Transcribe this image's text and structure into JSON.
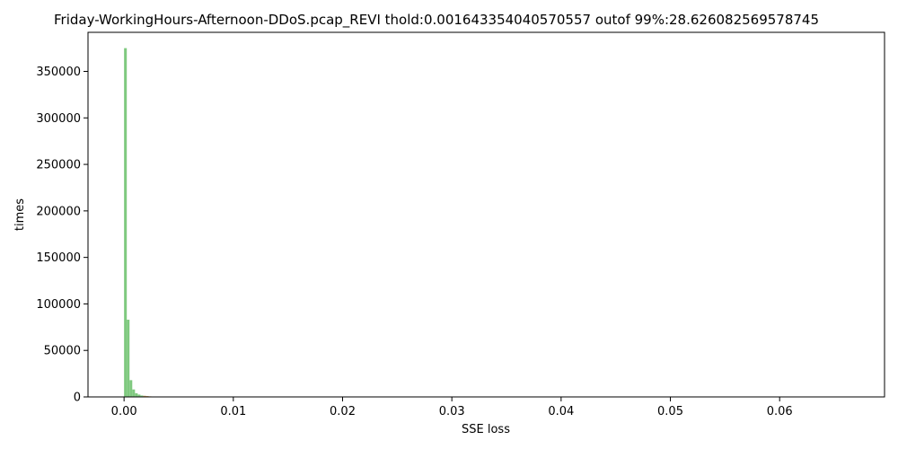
{
  "chart_data": {
    "type": "bar",
    "title": "Friday-WorkingHours-Afternoon-DDoS.pcap_REVI thold:0.001643354040570557 outof 99%:28.626082569578745",
    "xlabel": "SSE loss",
    "ylabel": "times",
    "xlim": [
      -0.0033,
      0.0696
    ],
    "ylim": [
      0,
      392000
    ],
    "x_ticks": [
      0.0,
      0.01,
      0.02,
      0.03,
      0.04,
      0.05,
      0.06
    ],
    "x_tick_labels": [
      "0.00",
      "0.01",
      "0.02",
      "0.03",
      "0.04",
      "0.05",
      "0.06"
    ],
    "y_ticks": [
      0,
      50000,
      100000,
      150000,
      200000,
      250000,
      300000,
      350000
    ],
    "y_tick_labels": [
      "0",
      "50000",
      "100000",
      "150000",
      "200000",
      "250000",
      "300000",
      "350000"
    ],
    "grid": false,
    "bin_width": 0.00025,
    "series": [
      {
        "color": "#7fc97f",
        "bins": [
          {
            "x0": 0.0,
            "value": 375000
          },
          {
            "x0": 0.00025,
            "value": 83000
          },
          {
            "x0": 0.0005,
            "value": 18000
          },
          {
            "x0": 0.00075,
            "value": 8000
          },
          {
            "x0": 0.001,
            "value": 4000
          },
          {
            "x0": 0.00125,
            "value": 2500
          },
          {
            "x0": 0.0015,
            "value": 1500
          }
        ]
      },
      {
        "color": "#c8a060",
        "bins": [
          {
            "x0": 0.00175,
            "value": 1200
          },
          {
            "x0": 0.002,
            "value": 900
          },
          {
            "x0": 0.00225,
            "value": 600
          },
          {
            "x0": 0.0025,
            "value": 300
          }
        ]
      }
    ]
  }
}
